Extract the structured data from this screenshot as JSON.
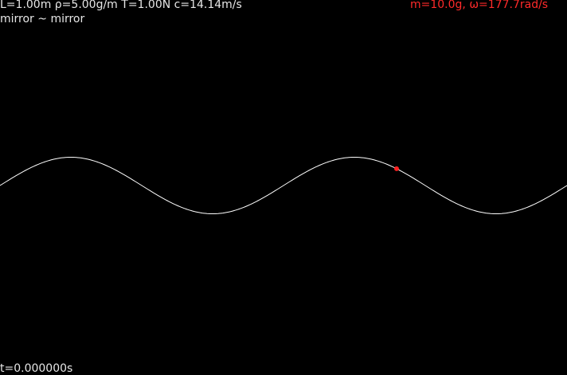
{
  "header": {
    "parameters": "L=1.00m ρ=5.00g/m T=1.00N c=14.14m/s",
    "boundary_conditions": "mirror ~ mirror",
    "bead_info": "m=10.0g, ω=177.7rad/s"
  },
  "footer": {
    "time": "t=0.000000s"
  },
  "simulation": {
    "string_color": "#ffffff",
    "bead_color": "#ff2020",
    "background": "#000000"
  }
}
